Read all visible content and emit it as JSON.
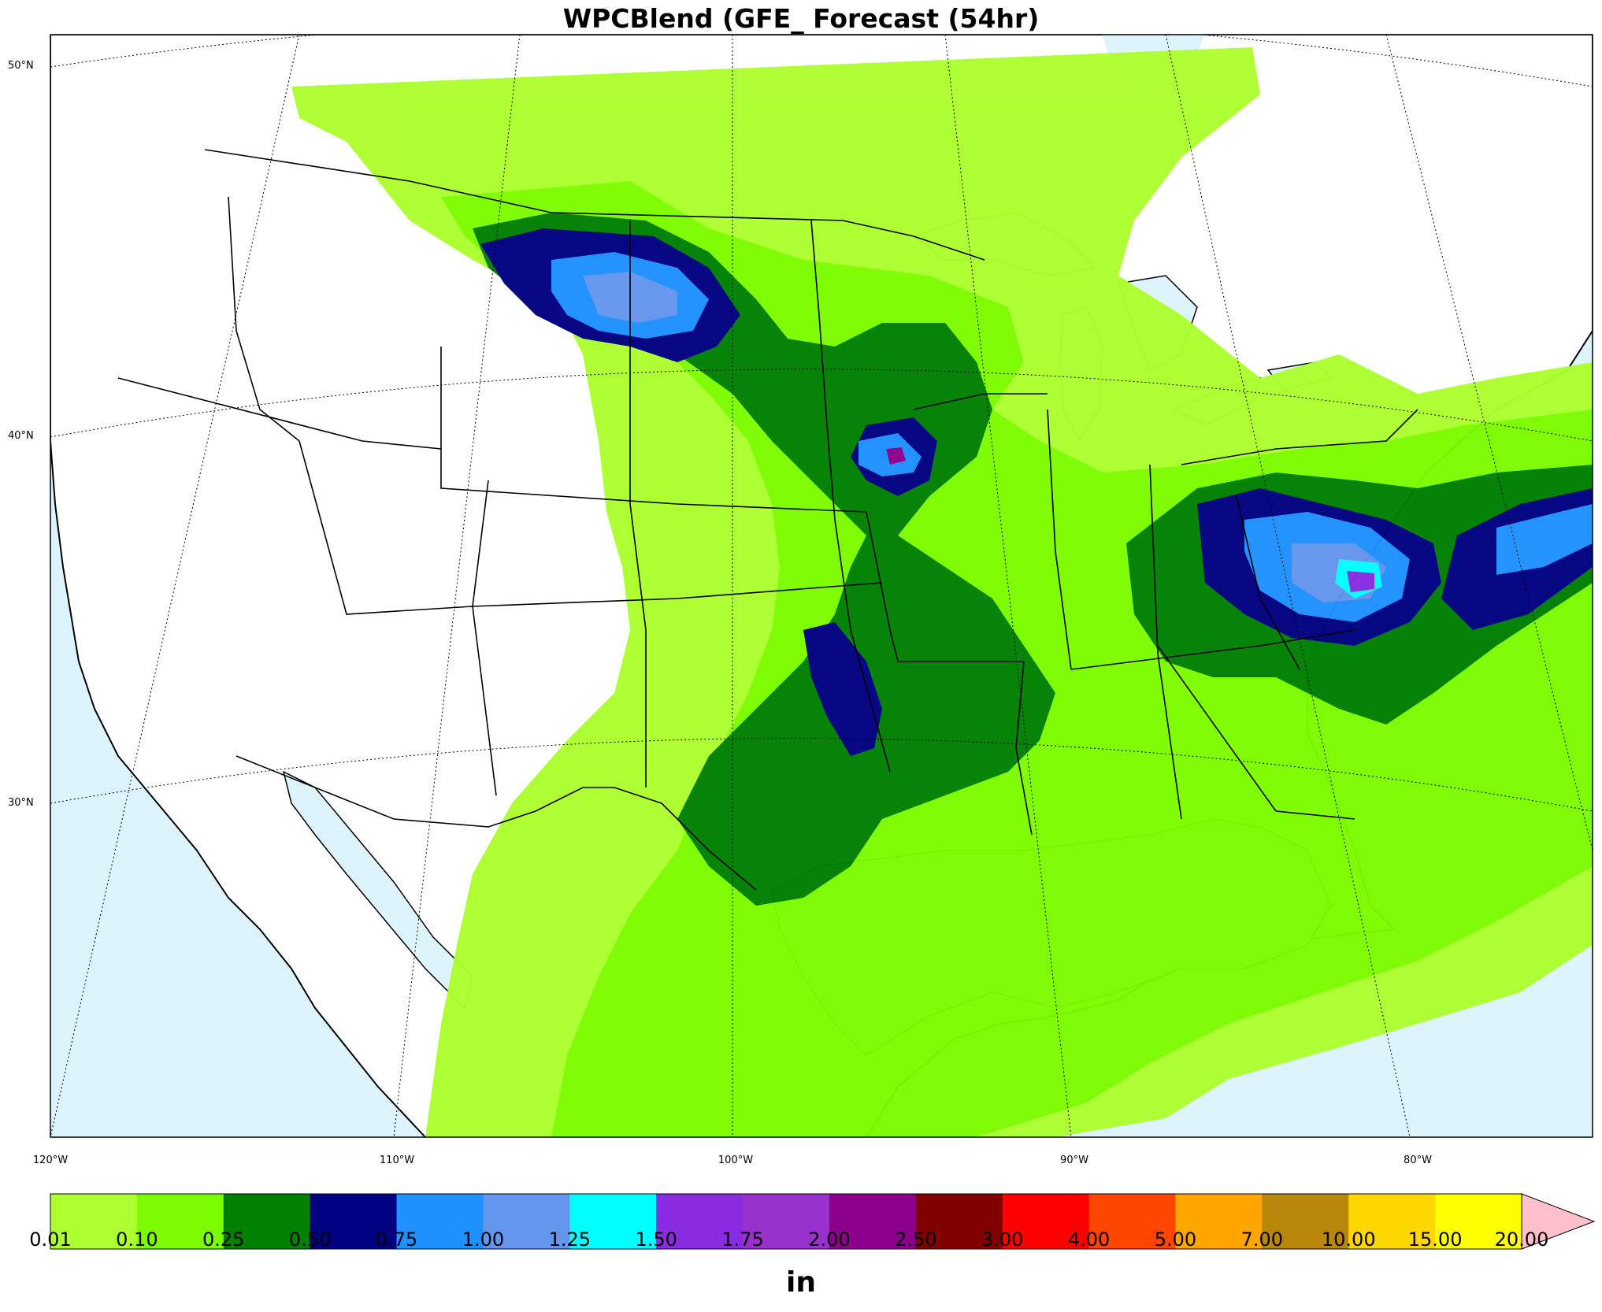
{
  "title": "WPCBlend (GFE_ Forecast (54hr)",
  "lat_labels": [
    {
      "text": "50°N",
      "lat": 50
    },
    {
      "text": "40°N",
      "lat": 40
    },
    {
      "text": "30°N",
      "lat": 30
    }
  ],
  "lon_labels": [
    {
      "text": "120°W",
      "lon": -120
    },
    {
      "text": "110°W",
      "lon": -110
    },
    {
      "text": "100°W",
      "lon": -100
    },
    {
      "text": "90°W",
      "lon": -90
    },
    {
      "text": "80°W",
      "lon": -80
    }
  ],
  "colorbar": {
    "units": "in",
    "ticks": [
      "0.01",
      "0.10",
      "0.25",
      "0.50",
      "0.75",
      "1.00",
      "1.25",
      "1.50",
      "1.75",
      "2.00",
      "2.50",
      "3.00",
      "4.00",
      "5.00",
      "7.00",
      "10.00",
      "15.00",
      "20.00"
    ],
    "colors": [
      "#adff2f",
      "#7cfc00",
      "#008000",
      "#000080",
      "#1e90ff",
      "#6495ed",
      "#00ffff",
      "#8a2be2",
      "#9932cc",
      "#8b008b",
      "#800000",
      "#ff0000",
      "#ff4500",
      "#ffa500",
      "#b8860b",
      "#ffd700",
      "#ffff00"
    ],
    "extend_color": "#ffc0cb"
  },
  "colors": {
    "ocean": "#def4fd",
    "land": "#ffffff"
  }
}
